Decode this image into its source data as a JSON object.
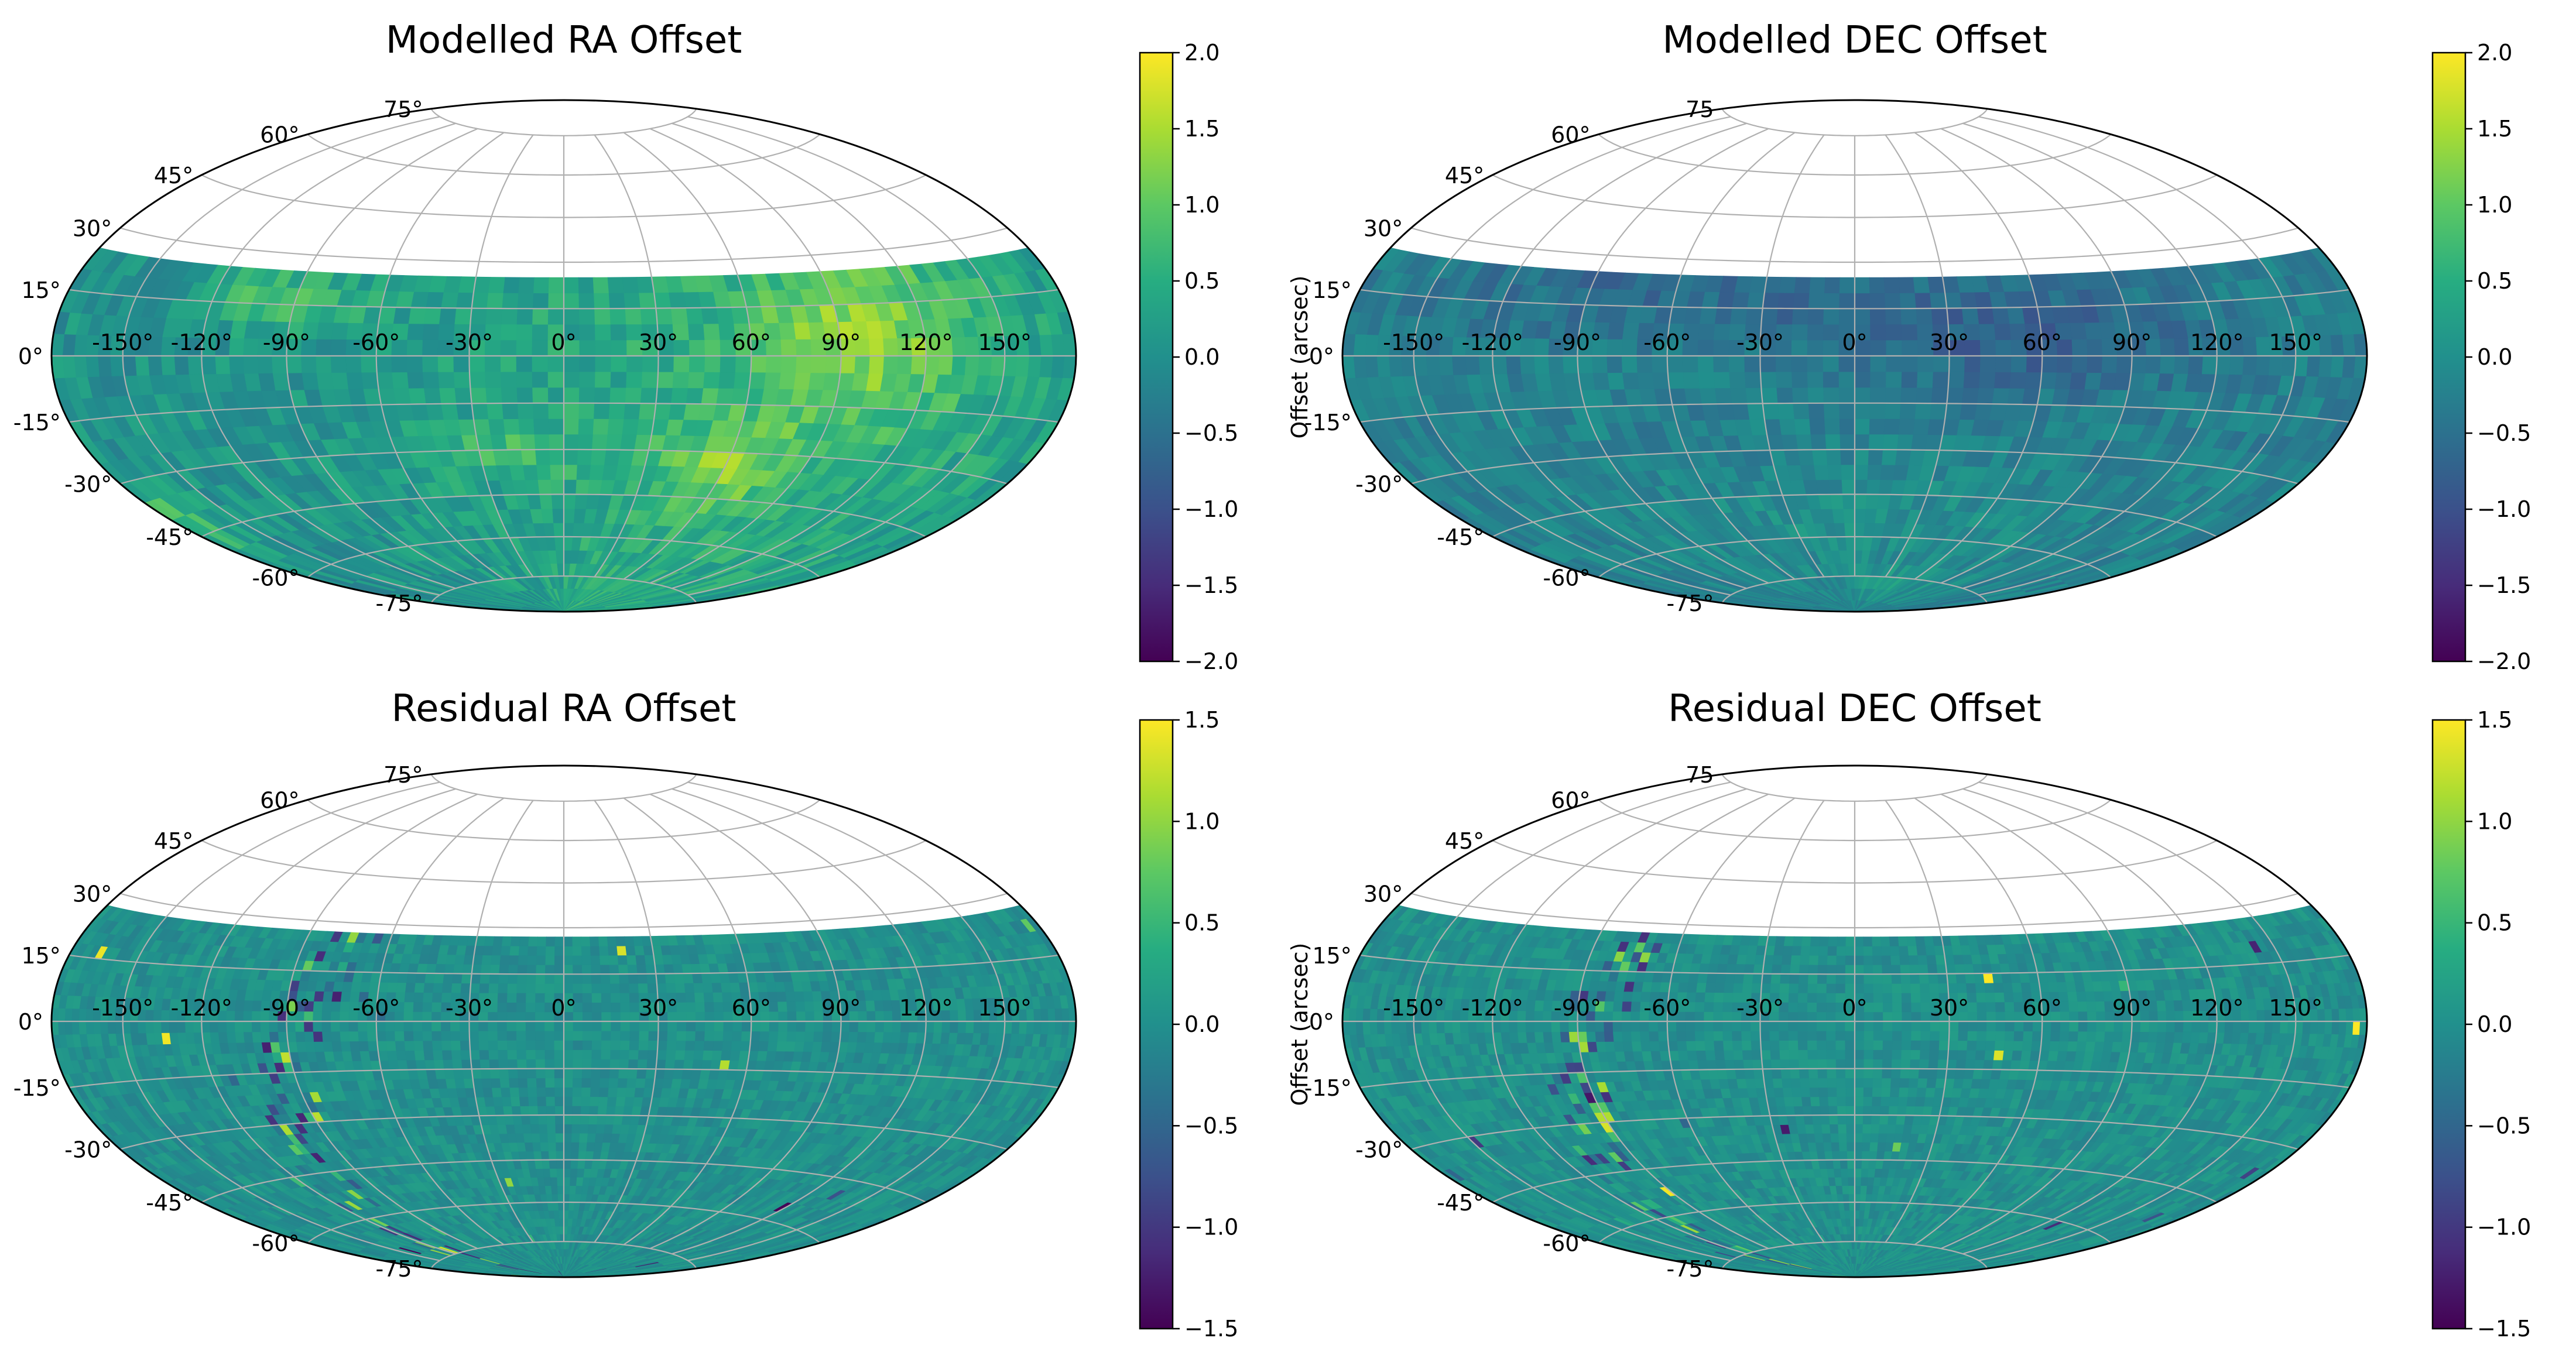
{
  "chart_data": [
    {
      "type": "heatmap",
      "projection": "hammer",
      "title": "Modelled RA Offset",
      "field": "modelled-ra",
      "lat_labels": [
        "75°",
        "60°",
        "45°",
        "30°",
        "15°",
        "0°",
        "-15°",
        "-30°",
        "-45°",
        "-60°",
        "-75°"
      ],
      "lon_labels": [
        "-150°",
        "-120°",
        "-90°",
        "-60°",
        "-30°",
        "0°",
        "30°",
        "60°",
        "90°",
        "120°",
        "150°"
      ],
      "data_dec_range": [
        -90,
        25
      ],
      "colorbar": {
        "label": "Offset (arcsec)",
        "vmin": -2.0,
        "vmax": 2.0,
        "ticks": [
          "−2.0",
          "−1.5",
          "−1.0",
          "−0.5",
          "0.0",
          "0.5",
          "1.0",
          "1.5",
          "2.0"
        ],
        "colormap": "viridis"
      }
    },
    {
      "type": "heatmap",
      "projection": "hammer",
      "title": "Modelled DEC Offset",
      "field": "modelled-dec",
      "lat_labels": [
        "75",
        "60°",
        "45°",
        "30°",
        "15°",
        "0°",
        "-15°",
        "-30°",
        "-45°",
        "-60°",
        "-75°"
      ],
      "lon_labels": [
        "-150°",
        "-120°",
        "-90°",
        "-60°",
        "-30°",
        "0°",
        "30°",
        "60°",
        "90°",
        "120°",
        "150°"
      ],
      "data_dec_range": [
        -90,
        25
      ],
      "colorbar": {
        "label": "Offset (arcsec)",
        "vmin": -2.0,
        "vmax": 2.0,
        "ticks": [
          "−2.0",
          "−1.5",
          "−1.0",
          "−0.5",
          "0.0",
          "0.5",
          "1.0",
          "1.5",
          "2.0"
        ],
        "colormap": "viridis"
      }
    },
    {
      "type": "heatmap",
      "projection": "hammer",
      "title": "Residual RA Offset",
      "field": "residual-ra",
      "lat_labels": [
        "75°",
        "60°",
        "45°",
        "30°",
        "15°",
        "0°",
        "-15°",
        "-30°",
        "-45°",
        "-60°",
        "-75°"
      ],
      "lon_labels": [
        "-150°",
        "-120°",
        "-90°",
        "-60°",
        "-30°",
        "0°",
        "30°",
        "60°",
        "90°",
        "120°",
        "150°"
      ],
      "data_dec_range": [
        -90,
        25
      ],
      "colorbar": {
        "label": "Offset (arcsec)",
        "vmin": -1.5,
        "vmax": 1.5,
        "ticks": [
          "−1.5",
          "−1.0",
          "−0.5",
          "0.0",
          "0.5",
          "1.0",
          "1.5"
        ],
        "colormap": "viridis"
      }
    },
    {
      "type": "heatmap",
      "projection": "hammer",
      "title": "Residual DEC Offset",
      "field": "residual-dec",
      "lat_labels": [
        "75",
        "60°",
        "45°",
        "30°",
        "15°",
        "0°",
        "-15°",
        "-30°",
        "-45°",
        "-60°",
        "-75°"
      ],
      "lon_labels": [
        "-150°",
        "-120°",
        "-90°",
        "-60°",
        "-30°",
        "0°",
        "30°",
        "60°",
        "90°",
        "120°",
        "150°"
      ],
      "data_dec_range": [
        -90,
        25
      ],
      "colorbar": {
        "label": "Offset (arcsec)",
        "vmin": -1.5,
        "vmax": 1.5,
        "ticks": [
          "−1.5",
          "−1.0",
          "−0.5",
          "0.0",
          "0.5",
          "1.0",
          "1.5"
        ],
        "colormap": "viridis"
      }
    }
  ]
}
